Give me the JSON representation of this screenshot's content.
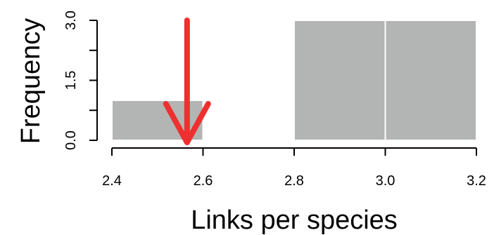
{
  "chart_data": {
    "type": "bar",
    "subtype": "histogram",
    "bins": [
      {
        "x0": 2.4,
        "x1": 2.6,
        "value": 1
      },
      {
        "x0": 2.6,
        "x1": 2.8,
        "value": 0
      },
      {
        "x0": 2.8,
        "x1": 3.0,
        "value": 3
      },
      {
        "x0": 3.0,
        "x1": 3.2,
        "value": 3
      }
    ],
    "xlabel": "Links per species",
    "ylabel": "Frequency",
    "xlim": [
      2.4,
      3.2
    ],
    "ylim": [
      0,
      3
    ],
    "x_ticks": [
      2.4,
      2.6,
      2.8,
      3.0,
      3.2
    ],
    "x_tick_labels": [
      "2.4",
      "2.6",
      "2.8",
      "3.0",
      "3.2"
    ],
    "y_ticks": [
      0,
      0.75,
      1.5,
      2.25,
      3
    ],
    "y_tick_labels": [
      "0.0",
      "",
      "1.5",
      "",
      "3.0"
    ],
    "grid": false,
    "bar_color": "#b3b5b5",
    "annotations": [
      {
        "type": "arrow",
        "x": 2.565,
        "y_from": 3,
        "y_to": 0,
        "color": "#ee3030"
      }
    ]
  }
}
